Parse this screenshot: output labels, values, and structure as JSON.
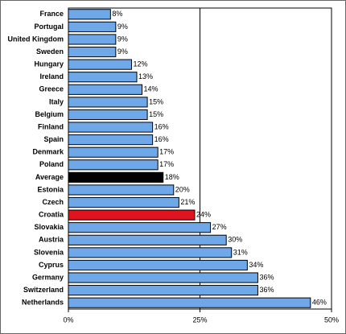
{
  "chart_data": {
    "type": "hbar",
    "categories": [
      "France",
      "Portugal",
      "United Kingdom",
      "Sweden",
      "Hungary",
      "Ireland",
      "Greece",
      "Italy",
      "Belgium",
      "Finland",
      "Spain",
      "Denmark",
      "Poland",
      "Average",
      "Estonia",
      "Czech",
      "Croatia",
      "Slovakia",
      "Austria",
      "Slovenia",
      "Cyprus",
      "Germany",
      "Switzerland",
      "Netherlands"
    ],
    "values": [
      8,
      9,
      9,
      9,
      12,
      13,
      14,
      15,
      15,
      16,
      16,
      17,
      17,
      18,
      20,
      21,
      24,
      27,
      30,
      31,
      34,
      36,
      36,
      46
    ],
    "value_labels": [
      "8%",
      "9%",
      "9%",
      "9%",
      "12%",
      "13%",
      "14%",
      "15%",
      "15%",
      "16%",
      "16%",
      "17%",
      "17%",
      "18%",
      "20%",
      "21%",
      "24%",
      "27%",
      "30%",
      "31%",
      "34%",
      "36%",
      "36%",
      "46%"
    ],
    "colors": [
      "#6fa8e8",
      "#6fa8e8",
      "#6fa8e8",
      "#6fa8e8",
      "#6fa8e8",
      "#6fa8e8",
      "#6fa8e8",
      "#6fa8e8",
      "#6fa8e8",
      "#6fa8e8",
      "#6fa8e8",
      "#6fa8e8",
      "#6fa8e8",
      "#000000",
      "#6fa8e8",
      "#6fa8e8",
      "#e0141e",
      "#6fa8e8",
      "#6fa8e8",
      "#6fa8e8",
      "#6fa8e8",
      "#6fa8e8",
      "#6fa8e8",
      "#6fa8e8"
    ],
    "xlim": [
      0,
      50
    ],
    "xticks": [
      {
        "value": 0,
        "label": "0%"
      },
      {
        "value": 25,
        "label": "25%"
      },
      {
        "value": 50,
        "label": "50%"
      }
    ],
    "grid": true
  }
}
